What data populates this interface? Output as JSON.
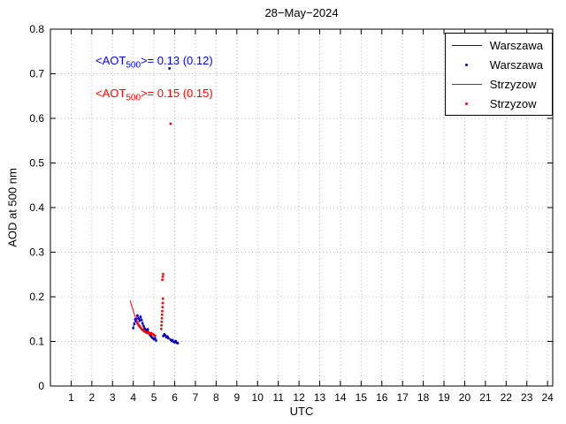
{
  "chart_data": {
    "type": "line",
    "title": "28−May−2024",
    "xlabel": "UTC",
    "ylabel": "AOD at 500 nm",
    "xlim": [
      0,
      24.25
    ],
    "ylim": [
      0,
      0.8
    ],
    "xticks": [
      1,
      2,
      3,
      4,
      5,
      6,
      7,
      8,
      9,
      10,
      11,
      12,
      13,
      14,
      15,
      16,
      17,
      18,
      19,
      20,
      21,
      22,
      23,
      24
    ],
    "yticks": [
      0,
      0.1,
      0.2,
      0.3,
      0.4,
      0.5,
      0.6,
      0.7,
      0.8
    ],
    "ytick_labels": [
      "0",
      "0.1",
      "0.2",
      "0.3",
      "0.4",
      "0.5",
      "0.6",
      "0.7",
      "0.8"
    ],
    "grid": true,
    "grid_color": "#b8b8b8",
    "legend_position": "top-right",
    "annotations": [
      {
        "color": "#0000ff",
        "prefix": "<AOT",
        "sub": "500",
        "suffix": ">= 0.13 (0.12)",
        "mean": 0.13,
        "stdev": 0.12
      },
      {
        "color": "#ff0000",
        "prefix": "<AOT",
        "sub": "500",
        "suffix": ">= 0.15 (0.15)",
        "mean": 0.15,
        "stdev": 0.15
      }
    ],
    "series": [
      {
        "name": "Warszawa",
        "style": "line",
        "color": "#0000ff",
        "points": [
          [
            4.0,
            0.132
          ],
          [
            4.05,
            0.141
          ],
          [
            4.1,
            0.152
          ],
          [
            4.15,
            0.147
          ],
          [
            4.2,
            0.16
          ],
          [
            4.25,
            0.153
          ],
          [
            4.3,
            0.148
          ],
          [
            4.35,
            0.157
          ],
          [
            4.4,
            0.15
          ],
          [
            4.45,
            0.142
          ],
          [
            4.5,
            0.136
          ],
          [
            4.55,
            0.131
          ],
          [
            4.6,
            0.128
          ],
          [
            4.65,
            0.125
          ],
          [
            4.7,
            0.129
          ],
          [
            4.75,
            0.121
          ],
          [
            4.8,
            0.117
          ],
          [
            4.85,
            0.114
          ],
          [
            4.9,
            0.111
          ],
          [
            4.95,
            0.109
          ],
          [
            5.0,
            0.107
          ],
          [
            5.05,
            0.109
          ],
          [
            5.1,
            0.104
          ]
        ]
      },
      {
        "name": "Warszawa",
        "style": "dots",
        "color": "#0000bb",
        "points": [
          [
            4.0,
            0.13
          ],
          [
            4.05,
            0.139
          ],
          [
            4.1,
            0.15
          ],
          [
            4.15,
            0.145
          ],
          [
            4.2,
            0.158
          ],
          [
            4.25,
            0.151
          ],
          [
            4.3,
            0.146
          ],
          [
            4.35,
            0.155
          ],
          [
            4.4,
            0.148
          ],
          [
            4.45,
            0.14
          ],
          [
            4.5,
            0.134
          ],
          [
            4.55,
            0.129
          ],
          [
            4.6,
            0.126
          ],
          [
            4.65,
            0.123
          ],
          [
            4.7,
            0.127
          ],
          [
            4.75,
            0.119
          ],
          [
            4.8,
            0.115
          ],
          [
            4.85,
            0.112
          ],
          [
            4.9,
            0.109
          ],
          [
            4.95,
            0.107
          ],
          [
            5.0,
            0.105
          ],
          [
            5.05,
            0.107
          ],
          [
            5.1,
            0.102
          ],
          [
            5.45,
            0.112
          ],
          [
            5.5,
            0.116
          ],
          [
            5.55,
            0.113
          ],
          [
            5.6,
            0.109
          ],
          [
            5.65,
            0.111
          ],
          [
            5.7,
            0.107
          ],
          [
            5.75,
            0.712
          ],
          [
            5.8,
            0.104
          ],
          [
            5.85,
            0.101
          ],
          [
            5.9,
            0.103
          ],
          [
            5.95,
            0.099
          ],
          [
            6.0,
            0.098
          ],
          [
            6.05,
            0.101
          ],
          [
            6.1,
            0.097
          ],
          [
            6.15,
            0.096
          ]
        ]
      },
      {
        "name": "Strzyzow",
        "style": "line",
        "color": "#ff0000",
        "points": [
          [
            3.85,
            0.192
          ],
          [
            3.9,
            0.183
          ],
          [
            3.95,
            0.176
          ],
          [
            4.0,
            0.168
          ],
          [
            4.05,
            0.161
          ],
          [
            4.1,
            0.154
          ],
          [
            4.15,
            0.149
          ],
          [
            4.2,
            0.143
          ],
          [
            4.25,
            0.139
          ],
          [
            4.3,
            0.135
          ],
          [
            4.35,
            0.132
          ],
          [
            4.4,
            0.129
          ],
          [
            4.45,
            0.127
          ],
          [
            4.5,
            0.125
          ],
          [
            4.55,
            0.123
          ]
        ]
      },
      {
        "name": "Strzyzow",
        "style": "dots",
        "color": "#ff0000",
        "points": [
          [
            4.2,
            0.141
          ],
          [
            4.25,
            0.137
          ],
          [
            4.3,
            0.134
          ],
          [
            4.35,
            0.131
          ],
          [
            4.4,
            0.128
          ],
          [
            4.45,
            0.126
          ],
          [
            4.5,
            0.124
          ],
          [
            4.55,
            0.122
          ],
          [
            4.6,
            0.121
          ],
          [
            4.65,
            0.119
          ],
          [
            4.7,
            0.121
          ],
          [
            4.75,
            0.118
          ],
          [
            4.8,
            0.117
          ],
          [
            4.85,
            0.119
          ],
          [
            4.9,
            0.117
          ],
          [
            4.95,
            0.116
          ],
          [
            5.0,
            0.114
          ],
          [
            5.05,
            0.113
          ],
          [
            5.35,
            0.128
          ],
          [
            5.36,
            0.136
          ],
          [
            5.37,
            0.144
          ],
          [
            5.38,
            0.152
          ],
          [
            5.39,
            0.16
          ],
          [
            5.4,
            0.168
          ],
          [
            5.41,
            0.177
          ],
          [
            5.42,
            0.186
          ],
          [
            5.43,
            0.196
          ],
          [
            5.4,
            0.238
          ],
          [
            5.42,
            0.245
          ],
          [
            5.44,
            0.251
          ],
          [
            5.8,
            0.588
          ]
        ]
      }
    ]
  }
}
